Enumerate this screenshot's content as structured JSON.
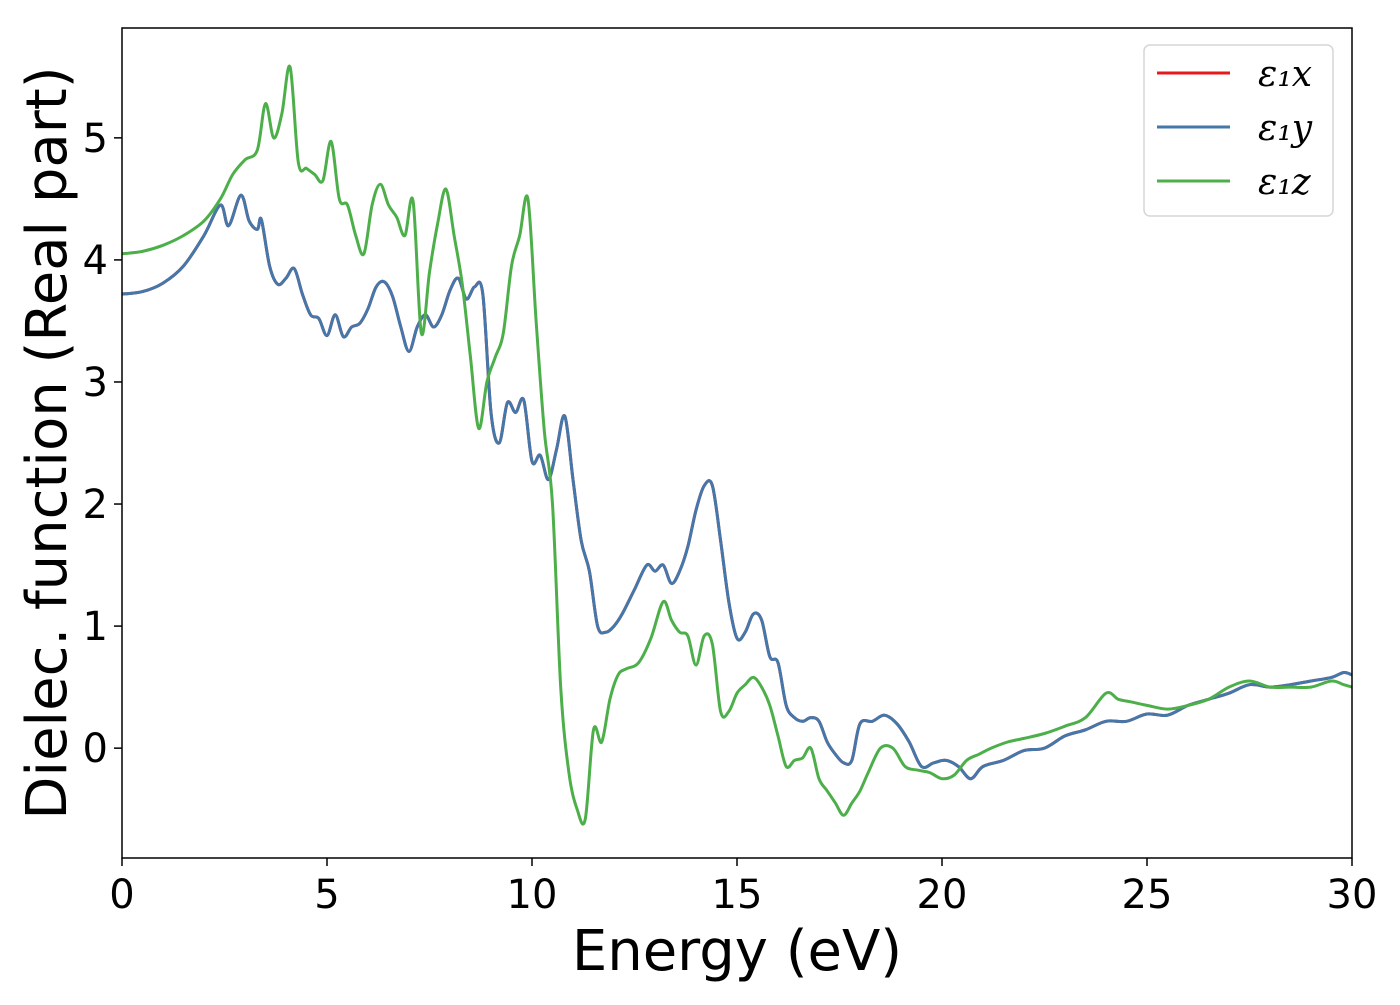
{
  "chart_data": {
    "type": "line",
    "title": "",
    "xlabel": "Energy (eV)",
    "ylabel": "Dielec. function (Real part)",
    "xlim": [
      0,
      30
    ],
    "ylim": [
      -0.9,
      5.9
    ],
    "xticks": [
      0,
      5,
      10,
      15,
      20,
      25,
      30
    ],
    "xtick_labels": [
      "0",
      "5",
      "10",
      "15",
      "20",
      "25",
      "30"
    ],
    "yticks": [
      0,
      1,
      2,
      3,
      4,
      5
    ],
    "ytick_labels": [
      "0",
      "1",
      "2",
      "3",
      "4",
      "5"
    ],
    "grid": false,
    "legend_position": "top-right",
    "series": [
      {
        "name": "ε₁x",
        "color": "#e41a1c",
        "x": [
          0,
          0.5,
          1.0,
          1.5,
          2.0,
          2.4,
          2.6,
          2.9,
          3.1,
          3.3,
          3.4,
          3.6,
          3.8,
          4.0,
          4.2,
          4.4,
          4.6,
          4.8,
          5.0,
          5.2,
          5.4,
          5.6,
          5.8,
          6.0,
          6.2,
          6.4,
          6.6,
          6.8,
          7.0,
          7.2,
          7.4,
          7.6,
          7.8,
          8.0,
          8.2,
          8.4,
          8.6,
          8.8,
          9.0,
          9.2,
          9.4,
          9.6,
          9.8,
          10.0,
          10.2,
          10.4,
          10.6,
          10.8,
          11.0,
          11.2,
          11.4,
          11.6,
          11.8,
          12.0,
          12.2,
          12.5,
          12.8,
          13.0,
          13.2,
          13.4,
          13.6,
          13.8,
          14.0,
          14.2,
          14.4,
          14.6,
          14.8,
          15.0,
          15.2,
          15.4,
          15.6,
          15.8,
          16.0,
          16.2,
          16.4,
          16.6,
          16.8,
          17.0,
          17.2,
          17.4,
          17.6,
          17.8,
          18.0,
          18.3,
          18.6,
          18.9,
          19.2,
          19.5,
          19.8,
          20.1,
          20.4,
          20.7,
          21.0,
          21.5,
          22.0,
          22.5,
          23.0,
          23.5,
          24.0,
          24.5,
          25.0,
          25.5,
          26.0,
          26.5,
          27.0,
          27.5,
          28.0,
          28.5,
          29.0,
          29.5,
          29.8,
          30.0
        ],
        "values": [
          3.72,
          3.74,
          3.81,
          3.95,
          4.2,
          4.45,
          4.28,
          4.53,
          4.32,
          4.25,
          4.33,
          3.95,
          3.8,
          3.85,
          3.93,
          3.72,
          3.55,
          3.52,
          3.38,
          3.55,
          3.37,
          3.45,
          3.48,
          3.6,
          3.78,
          3.82,
          3.7,
          3.45,
          3.25,
          3.45,
          3.55,
          3.45,
          3.55,
          3.75,
          3.85,
          3.68,
          3.78,
          3.72,
          2.75,
          2.5,
          2.83,
          2.75,
          2.85,
          2.35,
          2.4,
          2.2,
          2.45,
          2.72,
          2.2,
          1.7,
          1.45,
          1.0,
          0.95,
          1.0,
          1.1,
          1.3,
          1.5,
          1.45,
          1.5,
          1.35,
          1.45,
          1.65,
          1.95,
          2.15,
          2.15,
          1.7,
          1.2,
          0.9,
          0.95,
          1.1,
          1.05,
          0.75,
          0.7,
          0.35,
          0.25,
          0.22,
          0.25,
          0.22,
          0.05,
          -0.05,
          -0.12,
          -0.1,
          0.2,
          0.22,
          0.27,
          0.2,
          0.05,
          -0.15,
          -0.12,
          -0.1,
          -0.15,
          -0.25,
          -0.15,
          -0.1,
          -0.02,
          0.0,
          0.1,
          0.15,
          0.22,
          0.22,
          0.28,
          0.27,
          0.35,
          0.4,
          0.45,
          0.52,
          0.5,
          0.52,
          0.55,
          0.58,
          0.62,
          0.6
        ]
      },
      {
        "name": "ε₁y",
        "color": "#4477aa",
        "x": [
          0,
          0.5,
          1.0,
          1.5,
          2.0,
          2.4,
          2.6,
          2.9,
          3.1,
          3.3,
          3.4,
          3.6,
          3.8,
          4.0,
          4.2,
          4.4,
          4.6,
          4.8,
          5.0,
          5.2,
          5.4,
          5.6,
          5.8,
          6.0,
          6.2,
          6.4,
          6.6,
          6.8,
          7.0,
          7.2,
          7.4,
          7.6,
          7.8,
          8.0,
          8.2,
          8.4,
          8.6,
          8.8,
          9.0,
          9.2,
          9.4,
          9.6,
          9.8,
          10.0,
          10.2,
          10.4,
          10.6,
          10.8,
          11.0,
          11.2,
          11.4,
          11.6,
          11.8,
          12.0,
          12.2,
          12.5,
          12.8,
          13.0,
          13.2,
          13.4,
          13.6,
          13.8,
          14.0,
          14.2,
          14.4,
          14.6,
          14.8,
          15.0,
          15.2,
          15.4,
          15.6,
          15.8,
          16.0,
          16.2,
          16.4,
          16.6,
          16.8,
          17.0,
          17.2,
          17.4,
          17.6,
          17.8,
          18.0,
          18.3,
          18.6,
          18.9,
          19.2,
          19.5,
          19.8,
          20.1,
          20.4,
          20.7,
          21.0,
          21.5,
          22.0,
          22.5,
          23.0,
          23.5,
          24.0,
          24.5,
          25.0,
          25.5,
          26.0,
          26.5,
          27.0,
          27.5,
          28.0,
          28.5,
          29.0,
          29.5,
          29.8,
          30.0
        ],
        "values": [
          3.72,
          3.74,
          3.81,
          3.95,
          4.2,
          4.45,
          4.28,
          4.53,
          4.32,
          4.25,
          4.33,
          3.95,
          3.8,
          3.85,
          3.93,
          3.72,
          3.55,
          3.52,
          3.38,
          3.55,
          3.37,
          3.45,
          3.48,
          3.6,
          3.78,
          3.82,
          3.7,
          3.45,
          3.25,
          3.45,
          3.55,
          3.45,
          3.55,
          3.75,
          3.85,
          3.68,
          3.78,
          3.72,
          2.75,
          2.5,
          2.83,
          2.75,
          2.85,
          2.35,
          2.4,
          2.2,
          2.45,
          2.72,
          2.2,
          1.7,
          1.45,
          1.0,
          0.95,
          1.0,
          1.1,
          1.3,
          1.5,
          1.45,
          1.5,
          1.35,
          1.45,
          1.65,
          1.95,
          2.15,
          2.15,
          1.7,
          1.2,
          0.9,
          0.95,
          1.1,
          1.05,
          0.75,
          0.7,
          0.35,
          0.25,
          0.22,
          0.25,
          0.22,
          0.05,
          -0.05,
          -0.12,
          -0.1,
          0.2,
          0.22,
          0.27,
          0.2,
          0.05,
          -0.15,
          -0.12,
          -0.1,
          -0.15,
          -0.25,
          -0.15,
          -0.1,
          -0.02,
          0.0,
          0.1,
          0.15,
          0.22,
          0.22,
          0.28,
          0.27,
          0.35,
          0.4,
          0.45,
          0.52,
          0.5,
          0.52,
          0.55,
          0.58,
          0.62,
          0.6
        ]
      },
      {
        "name": "ε₁z",
        "color": "#4daf4a",
        "x": [
          0,
          0.5,
          1.0,
          1.5,
          2.0,
          2.4,
          2.7,
          3.0,
          3.3,
          3.5,
          3.7,
          3.9,
          4.1,
          4.3,
          4.5,
          4.7,
          4.9,
          5.1,
          5.3,
          5.5,
          5.7,
          5.9,
          6.1,
          6.3,
          6.5,
          6.7,
          6.9,
          7.1,
          7.3,
          7.5,
          7.7,
          7.9,
          8.1,
          8.3,
          8.5,
          8.7,
          8.9,
          9.1,
          9.3,
          9.5,
          9.7,
          9.9,
          10.1,
          10.3,
          10.5,
          10.7,
          10.9,
          11.1,
          11.3,
          11.5,
          11.7,
          11.9,
          12.1,
          12.3,
          12.6,
          12.9,
          13.2,
          13.4,
          13.6,
          13.8,
          14.0,
          14.2,
          14.4,
          14.6,
          14.8,
          15.0,
          15.2,
          15.4,
          15.6,
          15.8,
          16.0,
          16.2,
          16.4,
          16.6,
          16.8,
          17.0,
          17.2,
          17.4,
          17.6,
          17.8,
          18.0,
          18.2,
          18.5,
          18.8,
          19.1,
          19.4,
          19.7,
          20.0,
          20.3,
          20.6,
          20.9,
          21.2,
          21.6,
          22.0,
          22.5,
          23.0,
          23.5,
          24.0,
          24.3,
          24.6,
          25.0,
          25.5,
          26.0,
          26.5,
          27.0,
          27.5,
          28.0,
          28.5,
          29.0,
          29.5,
          29.8,
          30.0
        ],
        "values": [
          4.05,
          4.07,
          4.12,
          4.2,
          4.32,
          4.5,
          4.7,
          4.82,
          4.9,
          5.28,
          5.0,
          5.2,
          5.58,
          4.8,
          4.75,
          4.7,
          4.65,
          4.97,
          4.5,
          4.45,
          4.2,
          4.05,
          4.45,
          4.62,
          4.45,
          4.35,
          4.2,
          4.48,
          3.4,
          3.9,
          4.3,
          4.58,
          4.2,
          3.8,
          3.2,
          2.62,
          3.0,
          3.2,
          3.4,
          3.95,
          4.2,
          4.5,
          3.5,
          2.6,
          2.0,
          0.5,
          -0.2,
          -0.5,
          -0.58,
          0.15,
          0.05,
          0.4,
          0.6,
          0.65,
          0.7,
          0.9,
          1.2,
          1.05,
          0.95,
          0.92,
          0.68,
          0.92,
          0.85,
          0.3,
          0.3,
          0.45,
          0.52,
          0.58,
          0.5,
          0.35,
          0.1,
          -0.15,
          -0.1,
          -0.08,
          0.0,
          -0.25,
          -0.35,
          -0.45,
          -0.55,
          -0.45,
          -0.35,
          -0.2,
          0.0,
          0.0,
          -0.15,
          -0.18,
          -0.2,
          -0.25,
          -0.22,
          -0.1,
          -0.05,
          0.0,
          0.05,
          0.08,
          0.12,
          0.18,
          0.25,
          0.45,
          0.4,
          0.38,
          0.35,
          0.32,
          0.35,
          0.4,
          0.5,
          0.55,
          0.5,
          0.5,
          0.5,
          0.55,
          0.52,
          0.5
        ]
      }
    ]
  }
}
